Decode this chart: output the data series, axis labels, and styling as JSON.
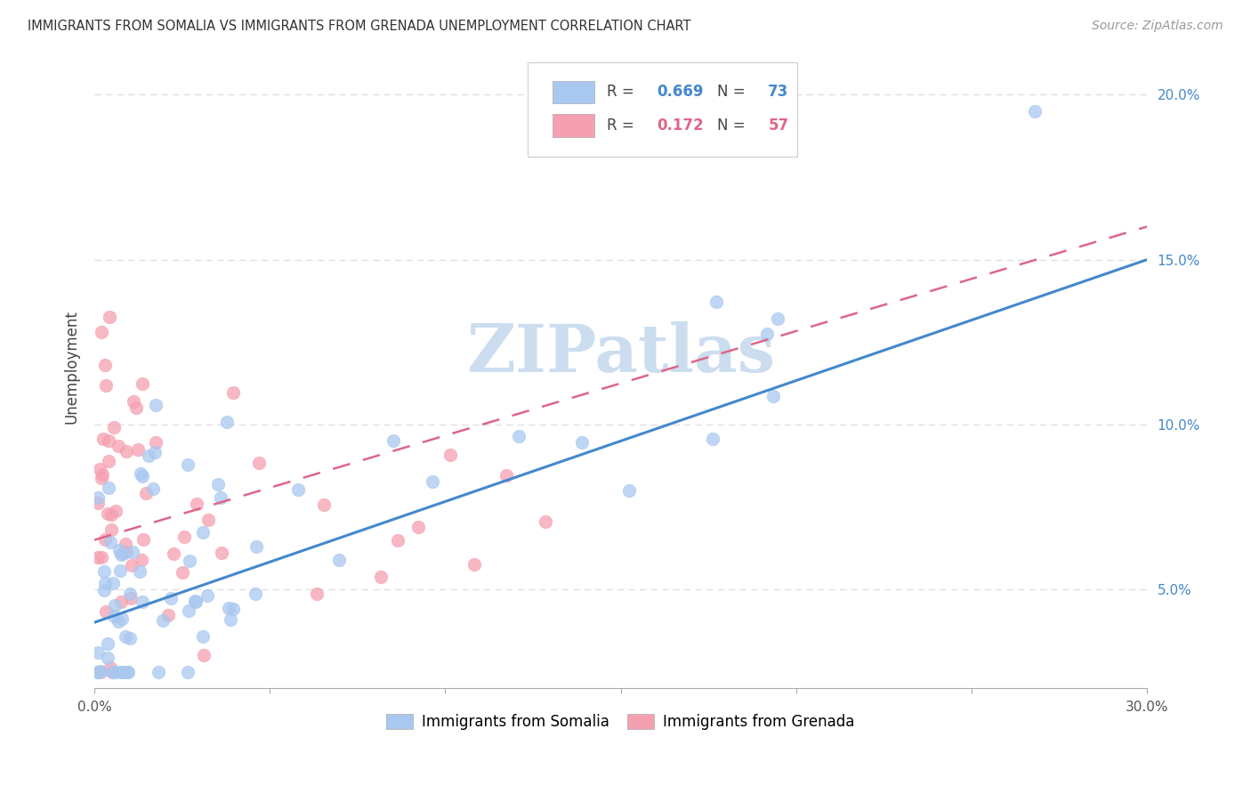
{
  "title": "IMMIGRANTS FROM SOMALIA VS IMMIGRANTS FROM GRENADA UNEMPLOYMENT CORRELATION CHART",
  "source": "Source: ZipAtlas.com",
  "ylabel": "Unemployment",
  "xlim": [
    0.0,
    0.3
  ],
  "ylim": [
    0.02,
    0.215
  ],
  "xtick_positions": [
    0.0,
    0.05,
    0.1,
    0.15,
    0.2,
    0.25,
    0.3
  ],
  "ytick_positions": [
    0.05,
    0.1,
    0.15,
    0.2
  ],
  "ytick_labels": [
    "5.0%",
    "10.0%",
    "15.0%",
    "20.0%"
  ],
  "somalia_R": 0.669,
  "somalia_N": 73,
  "grenada_R": 0.172,
  "grenada_N": 57,
  "somalia_color": "#a8c8f0",
  "grenada_color": "#f5a0b0",
  "somalia_line_color": "#4488cc",
  "grenada_line_color": "#dd6688",
  "watermark": "ZIPatlas",
  "watermark_color": "#ccddf0",
  "background_color": "#ffffff",
  "grid_color": "#dddddd",
  "title_color": "#333333",
  "axis_label_color": "#555555",
  "somalia_line_start_y": 0.04,
  "somalia_line_end_y": 0.15,
  "grenada_line_start_y": 0.065,
  "grenada_line_end_y": 0.16
}
